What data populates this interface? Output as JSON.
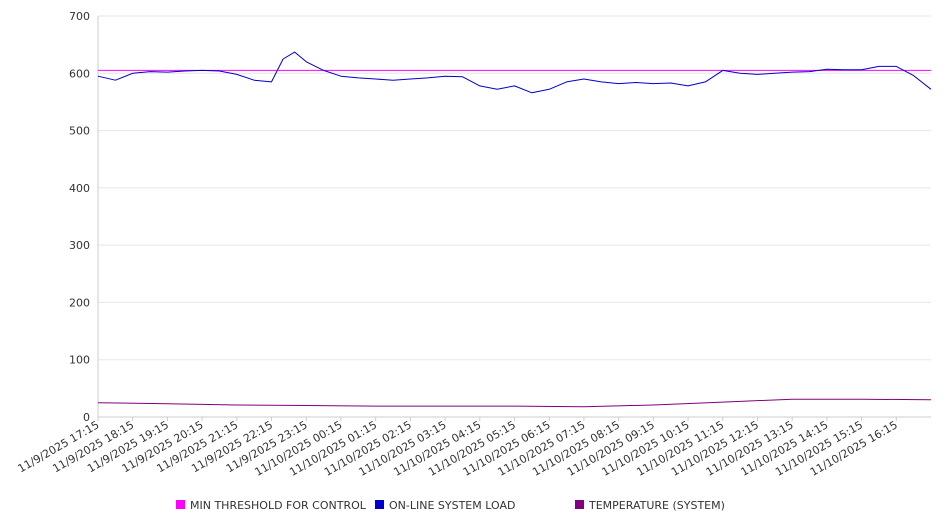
{
  "colors": {
    "background": "#ffffff",
    "grid": "#e6e6e6",
    "axis": "#cccccc",
    "text": "#333333"
  },
  "chart_data": {
    "type": "line",
    "title": "",
    "xlabel": "",
    "ylabel": "",
    "ylim": [
      0,
      700
    ],
    "yticks": [
      0,
      100,
      200,
      300,
      400,
      500,
      600,
      700
    ],
    "grid": true,
    "legend_position": "bottom",
    "x_tick_labels": [
      "11/9/2025 17:15",
      "11/9/2025 18:15",
      "11/9/2025 19:15",
      "11/9/2025 20:15",
      "11/9/2025 21:15",
      "11/9/2025 22:15",
      "11/9/2025 23:15",
      "11/10/2025 00:15",
      "11/10/2025 01:15",
      "11/10/2025 02:15",
      "11/10/2025 03:15",
      "11/10/2025 04:15",
      "11/10/2025 05:15",
      "11/10/2025 06:15",
      "11/10/2025 07:15",
      "11/10/2025 08:15",
      "11/10/2025 09:15",
      "11/10/2025 10:15",
      "11/10/2025 11:15",
      "11/10/2025 12:15",
      "11/10/2025 13:15",
      "11/10/2025 14:15",
      "11/10/2025 15:15",
      "11/10/2025 16:15"
    ],
    "x_start": "11/9/2025 17:15",
    "x_end": "11/10/2025 17:15",
    "series": [
      {
        "name": "MIN THRESHOLD FOR CONTROL",
        "color": "#ff00ff",
        "x": [
          "11/9/2025 17:15",
          "11/10/2025 17:15"
        ],
        "values": [
          605,
          605
        ]
      },
      {
        "name": "ON-LINE SYSTEM LOAD",
        "color": "#0000cc",
        "x": [
          "11/9/2025 17:15",
          "11/9/2025 17:45",
          "11/9/2025 18:15",
          "11/9/2025 18:45",
          "11/9/2025 19:15",
          "11/9/2025 19:45",
          "11/9/2025 20:15",
          "11/9/2025 20:45",
          "11/9/2025 21:15",
          "11/9/2025 21:45",
          "11/9/2025 22:15",
          "11/9/2025 22:35",
          "11/9/2025 22:55",
          "11/9/2025 23:15",
          "11/9/2025 23:45",
          "11/10/2025 00:15",
          "11/10/2025 00:45",
          "11/10/2025 01:15",
          "11/10/2025 01:45",
          "11/10/2025 02:15",
          "11/10/2025 02:45",
          "11/10/2025 03:15",
          "11/10/2025 03:45",
          "11/10/2025 04:15",
          "11/10/2025 04:45",
          "11/10/2025 05:15",
          "11/10/2025 05:45",
          "11/10/2025 06:15",
          "11/10/2025 06:45",
          "11/10/2025 07:15",
          "11/10/2025 07:45",
          "11/10/2025 08:15",
          "11/10/2025 08:45",
          "11/10/2025 09:15",
          "11/10/2025 09:45",
          "11/10/2025 10:15",
          "11/10/2025 10:45",
          "11/10/2025 11:15",
          "11/10/2025 11:45",
          "11/10/2025 12:15",
          "11/10/2025 12:45",
          "11/10/2025 13:15",
          "11/10/2025 13:45",
          "11/10/2025 14:15",
          "11/10/2025 14:45",
          "11/10/2025 15:15",
          "11/10/2025 15:45",
          "11/10/2025 16:15",
          "11/10/2025 16:45",
          "11/10/2025 17:15"
        ],
        "values": [
          595,
          588,
          600,
          603,
          602,
          604,
          605,
          604,
          598,
          588,
          585,
          625,
          637,
          620,
          605,
          595,
          592,
          590,
          588,
          590,
          592,
          595,
          594,
          578,
          572,
          578,
          566,
          572,
          585,
          590,
          585,
          582,
          584,
          582,
          583,
          578,
          585,
          605,
          600,
          598,
          600,
          602,
          603,
          607,
          606,
          606,
          612,
          612,
          596,
          572
        ]
      },
      {
        "name": "TEMPERATURE (SYSTEM)",
        "color": "#800080",
        "x": [
          "11/9/2025 17:15",
          "11/9/2025 19:15",
          "11/9/2025 21:15",
          "11/9/2025 23:15",
          "11/10/2025 01:15",
          "11/10/2025 03:15",
          "11/10/2025 05:15",
          "11/10/2025 07:15",
          "11/10/2025 09:15",
          "11/10/2025 11:15",
          "11/10/2025 13:15",
          "11/10/2025 15:15",
          "11/10/2025 17:15"
        ],
        "values": [
          25,
          23,
          21,
          20,
          19,
          19,
          19,
          18,
          21,
          26,
          31,
          31,
          30
        ]
      }
    ]
  }
}
